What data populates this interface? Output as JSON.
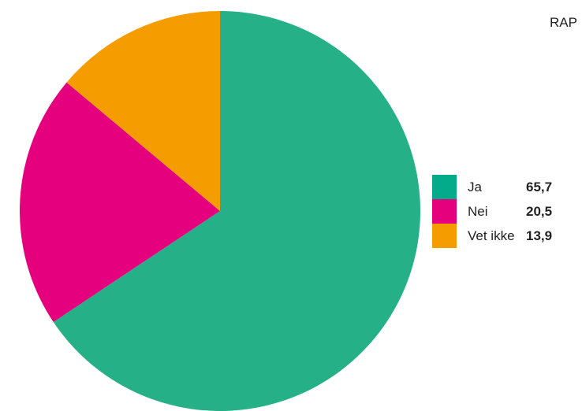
{
  "source_text": "RAP",
  "chart_data": {
    "type": "pie",
    "title": "",
    "start_angle_deg": 0,
    "direction": "clockwise",
    "legend_position": "right",
    "slices": [
      {
        "label": "Ja",
        "value": 65.7,
        "value_label": "65,7",
        "color": "#26b087"
      },
      {
        "label": "Nei",
        "value": 20.5,
        "value_label": "20,5",
        "color": "#e5007e"
      },
      {
        "label": "Vet ikke",
        "value": 13.9,
        "value_label": "13,9",
        "color": "#f59c00"
      }
    ],
    "legend_swatch_colors": [
      "#03ab8a",
      "#e5007e",
      "#f59c00"
    ]
  }
}
